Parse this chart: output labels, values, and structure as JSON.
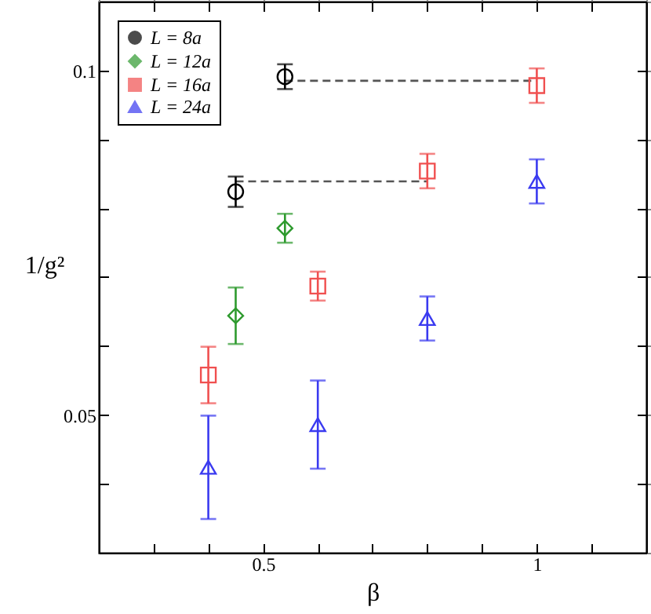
{
  "chart_data": {
    "type": "scatter",
    "xlabel": "β",
    "ylabel": "1/g²",
    "xlim": [
      0.2,
      1.2
    ],
    "ylim": [
      0.03,
      0.11
    ],
    "xticks": [
      {
        "value": 0.3,
        "label": null
      },
      {
        "value": 0.4,
        "label": null
      },
      0.5,
      {
        "value": 0.6,
        "label": null
      },
      {
        "value": 0.7,
        "label": null
      },
      {
        "value": 0.8,
        "label": null
      },
      {
        "value": 0.9,
        "label": null
      },
      1,
      {
        "value": 1.1,
        "label": null
      }
    ],
    "yticks": [
      {
        "value": 0.04,
        "label": null
      },
      0.05,
      {
        "value": 0.06,
        "label": null
      },
      {
        "value": 0.07,
        "label": null
      },
      {
        "value": 0.08,
        "label": null
      },
      {
        "value": 0.09,
        "label": null
      },
      0.1
    ],
    "grid": false,
    "legend": "top left",
    "series": [
      {
        "type": "line",
        "color": "#555555",
        "line_style": "dashed",
        "marker": "none",
        "x": [
          0.54,
          1.0
        ],
        "values": [
          0.0985,
          0.0985
        ]
      },
      {
        "type": "line",
        "color": "#555555",
        "line_style": "dashed",
        "marker": "none",
        "x": [
          0.45,
          0.8
        ],
        "values": [
          0.0839,
          0.0839
        ]
      },
      {
        "name": "L = 8a",
        "color": "#000000",
        "marker": "circle",
        "x": [
          0.45,
          0.54
        ],
        "values": [
          0.0824,
          0.0991
        ],
        "errors": [
          0.0022,
          0.0018
        ]
      },
      {
        "name": "L = 12a",
        "color": "#2e9a2e",
        "marker": "diamond",
        "x": [
          0.45,
          0.54
        ],
        "values": [
          0.0644,
          0.0771
        ],
        "errors": [
          0.0041,
          0.0021
        ]
      },
      {
        "name": "L = 16a",
        "color": "#f05050",
        "marker": "square",
        "x": [
          0.4,
          0.6,
          0.8,
          1.0
        ],
        "values": [
          0.0558,
          0.0687,
          0.0854,
          0.0978
        ],
        "errors": [
          0.0041,
          0.0021,
          0.0025,
          0.0025
        ]
      },
      {
        "name": "L = 24a",
        "color": "#3a3af0",
        "marker": "triangle",
        "x": [
          0.4,
          0.6,
          0.8,
          1.0
        ],
        "values": [
          0.0424,
          0.0486,
          0.064,
          0.0839
        ],
        "errors": [
          0.0075,
          0.0064,
          0.0032,
          0.0032
        ]
      }
    ]
  }
}
